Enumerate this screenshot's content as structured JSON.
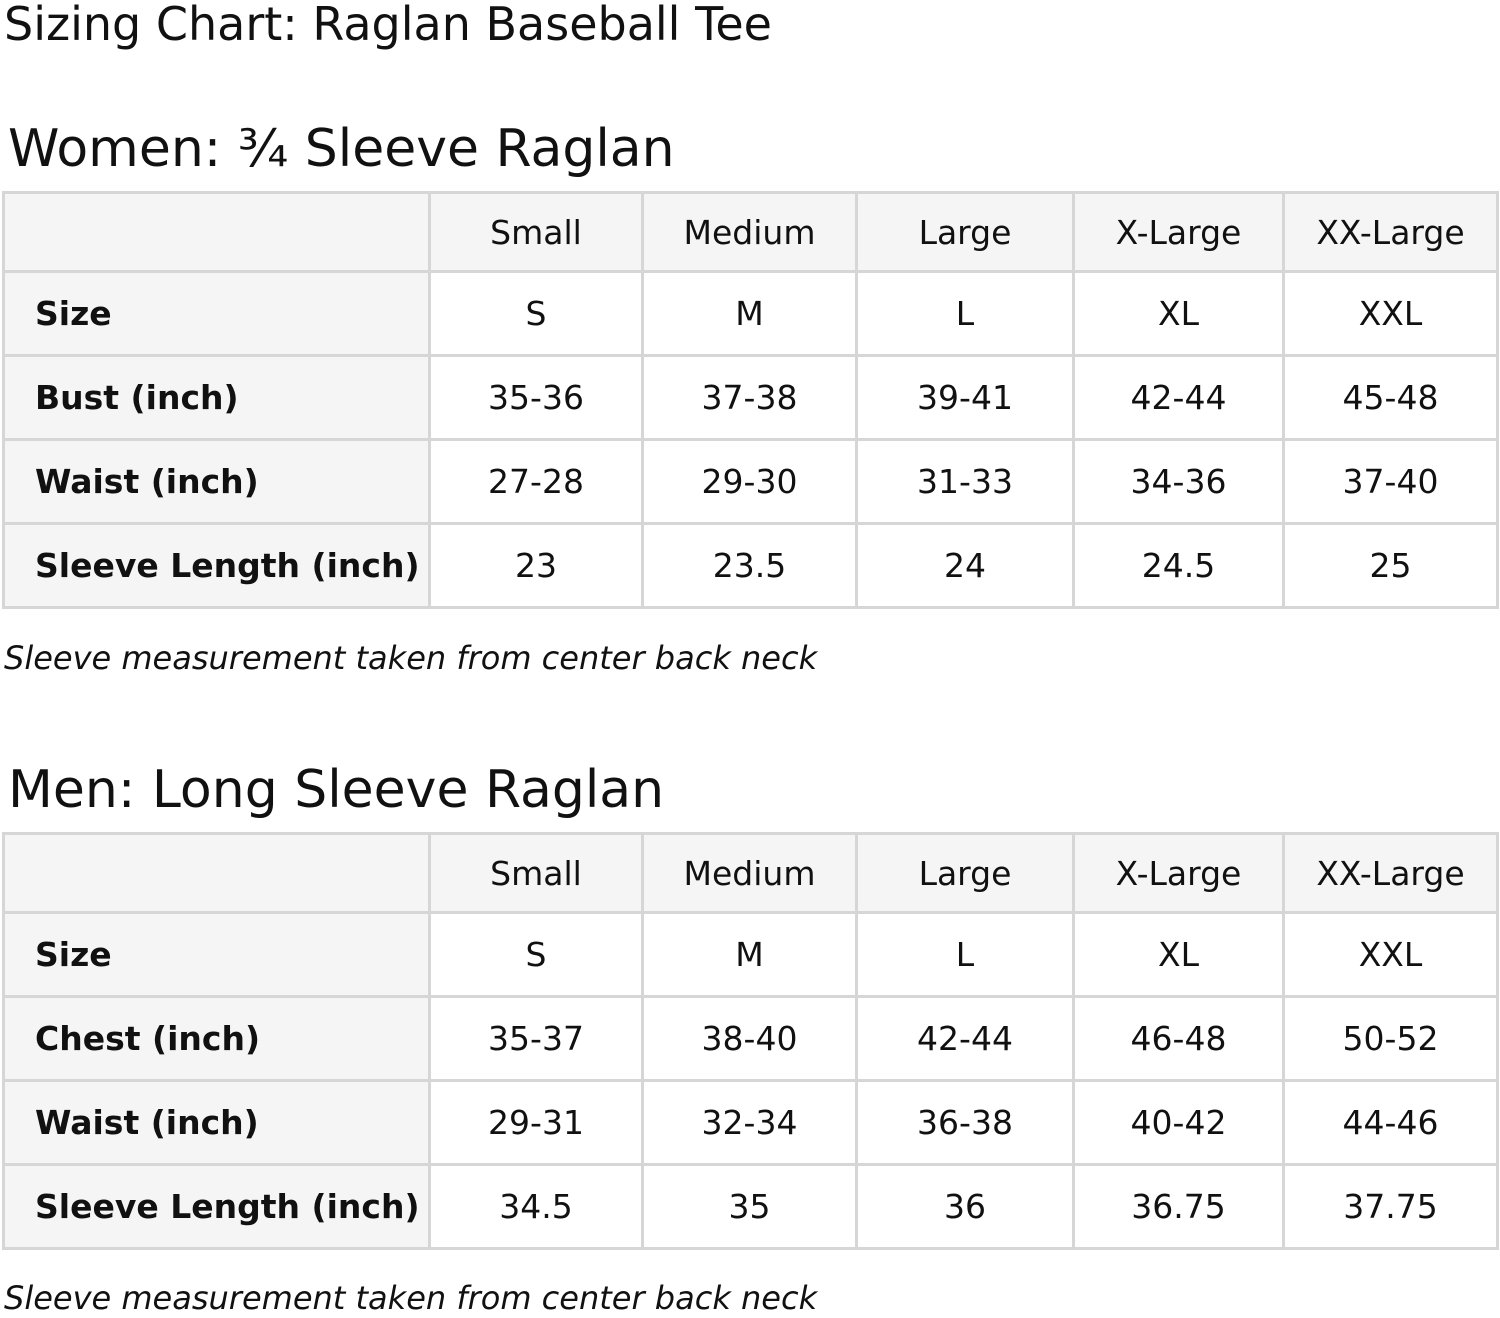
{
  "title": "Sizing Chart: Raglan Baseball Tee",
  "colors": {
    "header_bg": "#f5f5f5",
    "border": "#d6d6d6"
  },
  "tables": [
    {
      "heading": "Women: ¾ Sleeve Raglan",
      "columns": [
        "",
        "Small",
        "Medium",
        "Large",
        "X-Large",
        "XX-Large"
      ],
      "rows": [
        {
          "label": "Size",
          "values": [
            "S",
            "M",
            "L",
            "XL",
            "XXL"
          ]
        },
        {
          "label": "Bust (inch)",
          "values": [
            "35-36",
            "37-38",
            "39-41",
            "42-44",
            "45-48"
          ]
        },
        {
          "label": "Waist (inch)",
          "values": [
            "27-28",
            "29-30",
            "31-33",
            "34-36",
            "37-40"
          ]
        },
        {
          "label": "Sleeve Length (inch)",
          "values": [
            "23",
            "23.5",
            "24",
            "24.5",
            "25"
          ]
        }
      ],
      "note": "Sleeve measurement taken from center back neck"
    },
    {
      "heading": "Men: Long Sleeve Raglan",
      "columns": [
        "",
        "Small",
        "Medium",
        "Large",
        "X-Large",
        "XX-Large"
      ],
      "rows": [
        {
          "label": "Size",
          "values": [
            "S",
            "M",
            "L",
            "XL",
            "XXL"
          ]
        },
        {
          "label": "Chest (inch)",
          "values": [
            "35-37",
            "38-40",
            "42-44",
            "46-48",
            "50-52"
          ]
        },
        {
          "label": "Waist (inch)",
          "values": [
            "29-31",
            "32-34",
            "36-38",
            "40-42",
            "44-46"
          ]
        },
        {
          "label": "Sleeve Length (inch)",
          "values": [
            "34.5",
            "35",
            "36",
            "36.75",
            "37.75"
          ]
        }
      ],
      "note": "Sleeve measurement taken from center back neck"
    }
  ]
}
